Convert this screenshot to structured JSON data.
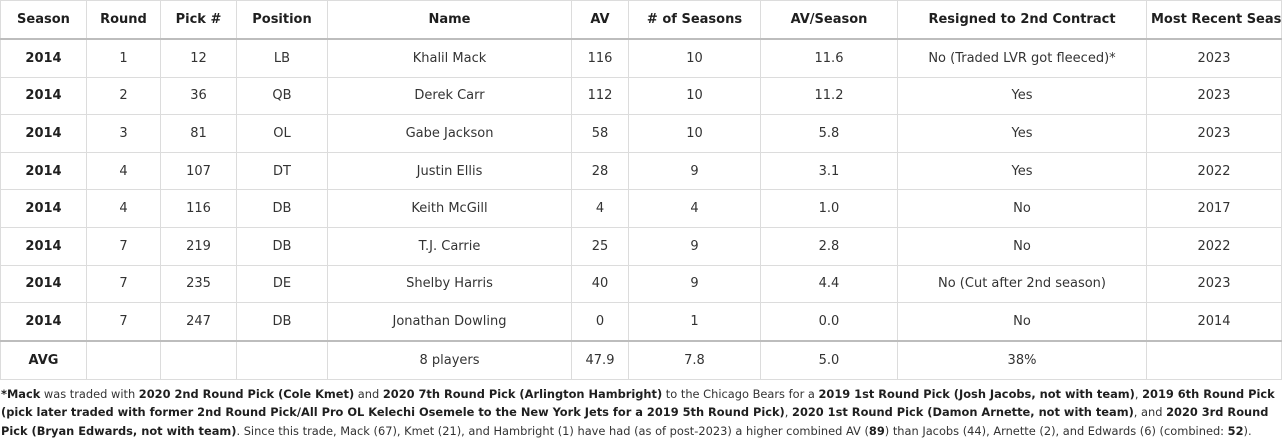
{
  "table": {
    "headers": [
      "Season",
      "Round",
      "Pick #",
      "Position",
      "Name",
      "AV",
      "# of Seasons",
      "AV/Season",
      "Resigned to 2nd Contract",
      "Most Recent Season"
    ],
    "rows": [
      [
        "2014",
        "1",
        "12",
        "LB",
        "Khalil Mack",
        "116",
        "10",
        "11.6",
        "No (Traded LVR got fleeced)*",
        "2023"
      ],
      [
        "2014",
        "2",
        "36",
        "QB",
        "Derek Carr",
        "112",
        "10",
        "11.2",
        "Yes",
        "2023"
      ],
      [
        "2014",
        "3",
        "81",
        "OL",
        "Gabe Jackson",
        "58",
        "10",
        "5.8",
        "Yes",
        "2023"
      ],
      [
        "2014",
        "4",
        "107",
        "DT",
        "Justin Ellis",
        "28",
        "9",
        "3.1",
        "Yes",
        "2022"
      ],
      [
        "2014",
        "4",
        "116",
        "DB",
        "Keith McGill",
        "4",
        "4",
        "1.0",
        "No",
        "2017"
      ],
      [
        "2014",
        "7",
        "219",
        "DB",
        "T.J. Carrie",
        "25",
        "9",
        "2.8",
        "No",
        "2022"
      ],
      [
        "2014",
        "7",
        "235",
        "DE",
        "Shelby Harris",
        "40",
        "9",
        "4.4",
        "No (Cut after 2nd season)",
        "2023"
      ],
      [
        "2014",
        "7",
        "247",
        "DB",
        "Jonathan Dowling",
        "0",
        "1",
        "0.0",
        "No",
        "2014"
      ]
    ],
    "avg_row": [
      "AVG",
      "",
      "",
      "",
      "8 players",
      "47.9",
      "7.8",
      "5.0",
      "38%",
      ""
    ]
  },
  "footnote": {
    "segments": [
      {
        "text": "*Mack",
        "bold": true
      },
      {
        "text": " was traded with ",
        "bold": false
      },
      {
        "text": "2020 2nd Round Pick (Cole Kmet)",
        "bold": true
      },
      {
        "text": " and ",
        "bold": false
      },
      {
        "text": "2020 7th Round Pick (Arlington Hambright)",
        "bold": true
      },
      {
        "text": " to the Chicago Bears for a ",
        "bold": false
      },
      {
        "text": "2019 1st Round Pick (Josh Jacobs, not with team)",
        "bold": true
      },
      {
        "text": ", ",
        "bold": false
      },
      {
        "text": "2019 6th Round Pick (pick later traded with former 2nd Round Pick/All Pro OL Kelechi Osemele to the New York Jets for a 2019 5th Round Pick)",
        "bold": true
      },
      {
        "text": ", ",
        "bold": false
      },
      {
        "text": "2020 1st Round Pick (Damon Arnette, not with team)",
        "bold": true
      },
      {
        "text": ", and ",
        "bold": false
      },
      {
        "text": "2020 3rd Round Pick (Bryan Edwards, not with team)",
        "bold": true
      },
      {
        "text": ". Since this trade, Mack (67), Kmet (21), and Hambright (1) have had (as of post-2023) a higher combined AV (",
        "bold": false
      },
      {
        "text": "89",
        "bold": true
      },
      {
        "text": ") than Jacobs (44), Arnette (2), and Edwards (6) (combined: ",
        "bold": false
      },
      {
        "text": "52",
        "bold": true
      },
      {
        "text": ").",
        "bold": false
      }
    ]
  }
}
